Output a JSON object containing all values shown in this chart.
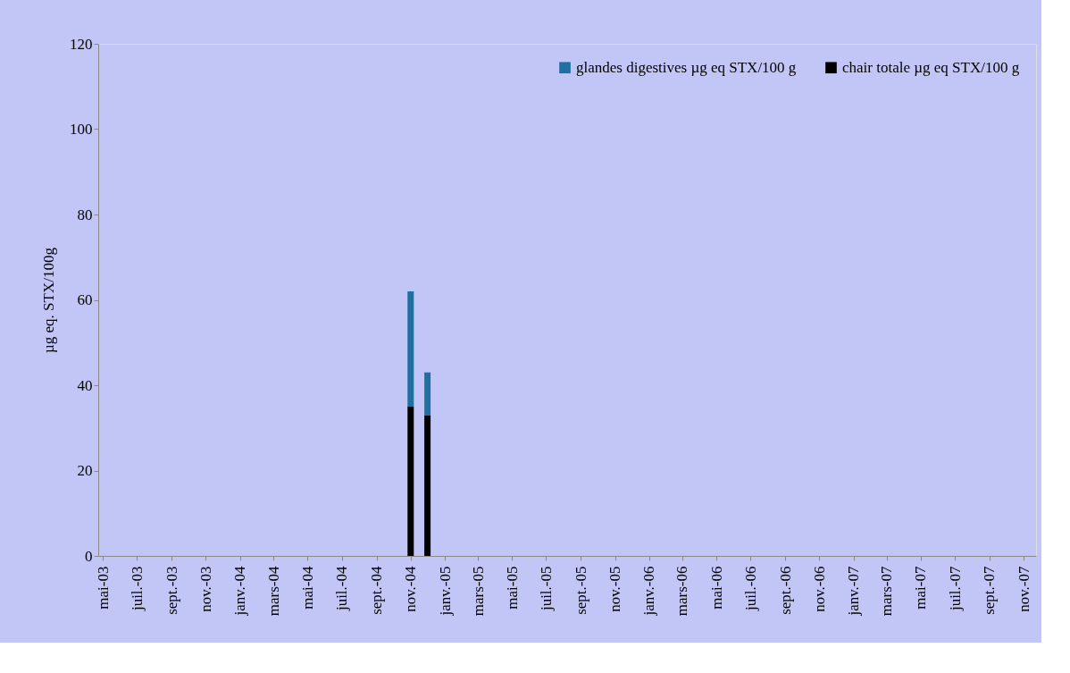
{
  "chart_data": {
    "type": "bar",
    "stacked": true,
    "ylabel": "µg eq. STX/100g",
    "x": [
      "2004-11-01",
      "2004-12-01"
    ],
    "series": [
      {
        "name": "chair totale µg eq STX/100 g",
        "color": "#000000",
        "values": [
          35,
          33
        ]
      },
      {
        "name": "glandes digestives µg eq STX/100 g",
        "color": "#1f6f9f",
        "values": [
          27,
          10
        ]
      }
    ],
    "ylim": [
      0,
      120
    ],
    "yticks": [
      0,
      20,
      40,
      60,
      80,
      100,
      120
    ],
    "xlim": [
      "2003-05-01",
      "2007-11-15"
    ],
    "xticks": [
      {
        "value": "2003-05-01",
        "label": "mai-03"
      },
      {
        "value": "2003-07-01",
        "label": "juil.-03"
      },
      {
        "value": "2003-09-01",
        "label": "sept.-03"
      },
      {
        "value": "2003-11-01",
        "label": "nov.-03"
      },
      {
        "value": "2004-01-01",
        "label": "janv.-04"
      },
      {
        "value": "2004-03-01",
        "label": "mars-04"
      },
      {
        "value": "2004-05-01",
        "label": "mai-04"
      },
      {
        "value": "2004-07-01",
        "label": "juil.-04"
      },
      {
        "value": "2004-09-01",
        "label": "sept.-04"
      },
      {
        "value": "2004-11-01",
        "label": "nov.-04"
      },
      {
        "value": "2005-01-01",
        "label": "janv.-05"
      },
      {
        "value": "2005-03-01",
        "label": "mars-05"
      },
      {
        "value": "2005-05-01",
        "label": "mai-05"
      },
      {
        "value": "2005-07-01",
        "label": "juil.-05"
      },
      {
        "value": "2005-09-01",
        "label": "sept.-05"
      },
      {
        "value": "2005-11-01",
        "label": "nov.-05"
      },
      {
        "value": "2006-01-01",
        "label": "janv.-06"
      },
      {
        "value": "2006-03-01",
        "label": "mars-06"
      },
      {
        "value": "2006-05-01",
        "label": "mai-06"
      },
      {
        "value": "2006-07-01",
        "label": "juil.-06"
      },
      {
        "value": "2006-09-01",
        "label": "sept.-06"
      },
      {
        "value": "2006-11-01",
        "label": "nov.-06"
      },
      {
        "value": "2007-01-01",
        "label": "janv.-07"
      },
      {
        "value": "2007-03-01",
        "label": "mars-07"
      },
      {
        "value": "2007-05-01",
        "label": "mai-07"
      },
      {
        "value": "2007-07-01",
        "label": "juil.-07"
      },
      {
        "value": "2007-09-01",
        "label": "sept.-07"
      },
      {
        "value": "2007-11-01",
        "label": "nov.-07"
      }
    ],
    "grid": false,
    "legend": "top right"
  }
}
